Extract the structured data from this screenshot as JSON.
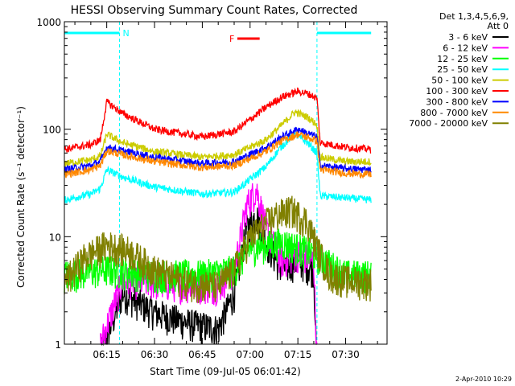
{
  "chart_data": {
    "type": "line",
    "title": "HESSI Observing Summary Count Rates, Corrected",
    "xlabel": "Start Time (09-Jul-05 06:01:42)",
    "ylabel": "Corrected Count Rate (s⁻¹ detector⁻¹)",
    "y_scale": "log",
    "ylim": [
      1,
      1000
    ],
    "y_ticks": [
      1,
      10,
      100,
      1000
    ],
    "y_tick_labels": [
      "1",
      "10",
      "100",
      "1000"
    ],
    "xlim": [
      "06:01:42",
      "07:43:00"
    ],
    "x_ticks": [
      "06:15",
      "06:30",
      "06:45",
      "07:00",
      "07:15",
      "07:30"
    ],
    "legend_header": [
      "Det 1,3,4,5,6,9,",
      "Att 0"
    ],
    "legend_position": "right",
    "footer_date": "2-Apr-2010 10:29",
    "orbit_flags": [
      {
        "label": "N",
        "color": "#00ffff",
        "intervals": [
          [
            "06:01:42",
            "06:19:00"
          ],
          [
            "07:21:00",
            "07:38:00"
          ]
        ]
      },
      {
        "label": "F",
        "color": "#ff0000",
        "intervals": [
          [
            "06:56:00",
            "07:03:00"
          ]
        ]
      }
    ],
    "night_boundaries": [
      "06:19:00",
      "07:21:00"
    ],
    "series": [
      {
        "name": "3 - 6 keV",
        "color": "#000000",
        "x": [
          "06:13",
          "06:20",
          "06:30",
          "06:40",
          "06:50",
          "06:55",
          "06:59",
          "07:02",
          "07:05",
          "07:10",
          "07:15",
          "07:20",
          "07:21"
        ],
        "y": [
          0.8,
          3.0,
          2.0,
          1.6,
          1.4,
          3.0,
          12,
          16,
          9,
          5,
          6,
          5,
          0.5
        ]
      },
      {
        "name": "6 - 12 keV",
        "color": "#ff00ff",
        "x": [
          "06:13",
          "06:20",
          "06:30",
          "06:40",
          "06:50",
          "06:55",
          "06:59",
          "07:02",
          "07:05",
          "07:10",
          "07:15",
          "07:20",
          "07:21"
        ],
        "y": [
          1.0,
          4.0,
          3.8,
          3.6,
          3.5,
          5,
          20,
          28,
          12,
          6,
          7,
          6,
          0.6
        ]
      },
      {
        "name": "12 - 25 keV",
        "color": "#00ff00",
        "x": [
          "06:01:42",
          "06:15",
          "06:30",
          "06:45",
          "06:55",
          "07:00",
          "07:10",
          "07:15",
          "07:20",
          "07:30",
          "07:38"
        ],
        "y": [
          4.5,
          5.0,
          4.5,
          4.5,
          5,
          8,
          9,
          8,
          7,
          4.5,
          4.5
        ]
      },
      {
        "name": "25 - 50 keV",
        "color": "#00ffff",
        "x": [
          "06:01:42",
          "06:10",
          "06:13",
          "06:15",
          "06:20",
          "06:30",
          "06:45",
          "06:55",
          "07:05",
          "07:10",
          "07:14",
          "07:18",
          "07:21",
          "07:22",
          "07:30",
          "07:38"
        ],
        "y": [
          22,
          25,
          28,
          42,
          36,
          29,
          25,
          26,
          45,
          70,
          90,
          75,
          60,
          24,
          23,
          22
        ]
      },
      {
        "name": "50 - 100 keV",
        "color": "#cccc00",
        "x": [
          "06:01:42",
          "06:10",
          "06:13",
          "06:15",
          "06:20",
          "06:30",
          "06:45",
          "06:55",
          "07:05",
          "07:10",
          "07:14",
          "07:18",
          "07:21",
          "07:22",
          "07:30",
          "07:38"
        ],
        "y": [
          48,
          52,
          56,
          90,
          75,
          62,
          55,
          58,
          80,
          110,
          145,
          130,
          110,
          55,
          50,
          50
        ]
      },
      {
        "name": "100 - 300 keV",
        "color": "#ff0000",
        "x": [
          "06:01:42",
          "06:10",
          "06:13",
          "06:15",
          "06:20",
          "06:30",
          "06:45",
          "06:55",
          "07:05",
          "07:10",
          "07:15",
          "07:18",
          "07:21",
          "07:22",
          "07:30",
          "07:38"
        ],
        "y": [
          65,
          72,
          80,
          180,
          140,
          100,
          85,
          95,
          160,
          200,
          225,
          215,
          195,
          75,
          68,
          65
        ]
      },
      {
        "name": "300 - 800 keV",
        "color": "#0000ff",
        "x": [
          "06:01:42",
          "06:10",
          "06:13",
          "06:15",
          "06:20",
          "06:30",
          "06:45",
          "06:55",
          "07:05",
          "07:10",
          "07:15",
          "07:18",
          "07:21",
          "07:22",
          "07:30",
          "07:38"
        ],
        "y": [
          42,
          46,
          50,
          68,
          63,
          55,
          48,
          50,
          68,
          85,
          100,
          92,
          85,
          46,
          43,
          42
        ]
      },
      {
        "name": "800 - 7000 keV",
        "color": "#ff8800",
        "x": [
          "06:01:42",
          "06:10",
          "06:13",
          "06:15",
          "06:20",
          "06:30",
          "06:45",
          "06:55",
          "07:05",
          "07:10",
          "07:15",
          "07:18",
          "07:21",
          "07:22",
          "07:30",
          "07:38"
        ],
        "y": [
          38,
          42,
          46,
          63,
          58,
          50,
          44,
          46,
          62,
          78,
          90,
          84,
          78,
          42,
          39,
          38
        ]
      },
      {
        "name": "7000 - 20000 keV",
        "color": "#808000",
        "x": [
          "06:01:42",
          "06:08",
          "06:15",
          "06:22",
          "06:30",
          "06:40",
          "06:50",
          "06:55",
          "07:00",
          "07:08",
          "07:13",
          "07:18",
          "07:21",
          "07:25",
          "07:30",
          "07:38"
        ],
        "y": [
          3.8,
          6.5,
          8.5,
          7.5,
          5.0,
          3.8,
          3.5,
          5,
          10,
          16,
          18,
          14,
          8,
          4.5,
          4,
          3.8
        ]
      }
    ]
  }
}
